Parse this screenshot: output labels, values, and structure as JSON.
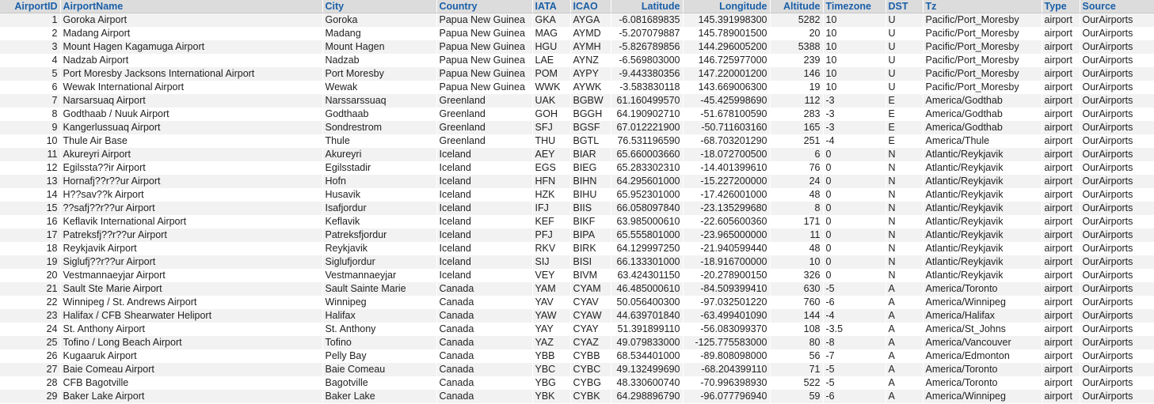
{
  "table": {
    "columns": [
      {
        "key": "id",
        "label": "AirportID",
        "align": "num"
      },
      {
        "key": "name",
        "label": "AirportName",
        "align": "left"
      },
      {
        "key": "city",
        "label": "City",
        "align": "left"
      },
      {
        "key": "country",
        "label": "Country",
        "align": "left"
      },
      {
        "key": "iata",
        "label": "IATA",
        "align": "left"
      },
      {
        "key": "icao",
        "label": "ICAO",
        "align": "left"
      },
      {
        "key": "lat",
        "label": "Latitude",
        "align": "num"
      },
      {
        "key": "lon",
        "label": "Longitude",
        "align": "num"
      },
      {
        "key": "alt",
        "label": "Altitude",
        "align": "num"
      },
      {
        "key": "tz_offset",
        "label": "Timezone",
        "align": "left"
      },
      {
        "key": "dst",
        "label": "DST",
        "align": "left"
      },
      {
        "key": "tz",
        "label": "Tz",
        "align": "left"
      },
      {
        "key": "type",
        "label": "Type",
        "align": "left"
      },
      {
        "key": "source",
        "label": "Source",
        "align": "left"
      }
    ],
    "rows": [
      [
        "1",
        "Goroka Airport",
        "Goroka",
        "Papua New Guinea",
        "GKA",
        "AYGA",
        "-6.081689835",
        "145.391998300",
        "5282",
        "10",
        "U",
        "Pacific/Port_Moresby",
        "airport",
        "OurAirports"
      ],
      [
        "2",
        "Madang Airport",
        "Madang",
        "Papua New Guinea",
        "MAG",
        "AYMD",
        "-5.207079887",
        "145.789001500",
        "20",
        "10",
        "U",
        "Pacific/Port_Moresby",
        "airport",
        "OurAirports"
      ],
      [
        "3",
        "Mount Hagen Kagamuga Airport",
        "Mount Hagen",
        "Papua New Guinea",
        "HGU",
        "AYMH",
        "-5.826789856",
        "144.296005200",
        "5388",
        "10",
        "U",
        "Pacific/Port_Moresby",
        "airport",
        "OurAirports"
      ],
      [
        "4",
        "Nadzab Airport",
        "Nadzab",
        "Papua New Guinea",
        "LAE",
        "AYNZ",
        "-6.569803000",
        "146.725977000",
        "239",
        "10",
        "U",
        "Pacific/Port_Moresby",
        "airport",
        "OurAirports"
      ],
      [
        "5",
        "Port Moresby Jacksons International Airport",
        "Port Moresby",
        "Papua New Guinea",
        "POM",
        "AYPY",
        "-9.443380356",
        "147.220001200",
        "146",
        "10",
        "U",
        "Pacific/Port_Moresby",
        "airport",
        "OurAirports"
      ],
      [
        "6",
        "Wewak International Airport",
        "Wewak",
        "Papua New Guinea",
        "WWK",
        "AYWK",
        "-3.583830118",
        "143.669006300",
        "19",
        "10",
        "U",
        "Pacific/Port_Moresby",
        "airport",
        "OurAirports"
      ],
      [
        "7",
        "Narsarsuaq Airport",
        "Narssarssuaq",
        "Greenland",
        "UAK",
        "BGBW",
        "61.160499570",
        "-45.425998690",
        "112",
        "-3",
        "E",
        "America/Godthab",
        "airport",
        "OurAirports"
      ],
      [
        "8",
        "Godthaab / Nuuk Airport",
        "Godthaab",
        "Greenland",
        "GOH",
        "BGGH",
        "64.190902710",
        "-51.678100590",
        "283",
        "-3",
        "E",
        "America/Godthab",
        "airport",
        "OurAirports"
      ],
      [
        "9",
        "Kangerlussuaq Airport",
        "Sondrestrom",
        "Greenland",
        "SFJ",
        "BGSF",
        "67.012221900",
        "-50.711603160",
        "165",
        "-3",
        "E",
        "America/Godthab",
        "airport",
        "OurAirports"
      ],
      [
        "10",
        "Thule Air Base",
        "Thule",
        "Greenland",
        "THU",
        "BGTL",
        "76.531196590",
        "-68.703201290",
        "251",
        "-4",
        "E",
        "America/Thule",
        "airport",
        "OurAirports"
      ],
      [
        "11",
        "Akureyri Airport",
        "Akureyri",
        "Iceland",
        "AEY",
        "BIAR",
        "65.660003660",
        "-18.072700500",
        "6",
        "0",
        "N",
        "Atlantic/Reykjavik",
        "airport",
        "OurAirports"
      ],
      [
        "12",
        "Egilssta??ir Airport",
        "Egilsstadir",
        "Iceland",
        "EGS",
        "BIEG",
        "65.283302310",
        "-14.401399610",
        "76",
        "0",
        "N",
        "Atlantic/Reykjavik",
        "airport",
        "OurAirports"
      ],
      [
        "13",
        "Hornafj??r??ur Airport",
        "Hofn",
        "Iceland",
        "HFN",
        "BIHN",
        "64.295601000",
        "-15.227200000",
        "24",
        "0",
        "N",
        "Atlantic/Reykjavik",
        "airport",
        "OurAirports"
      ],
      [
        "14",
        "H??sav??k Airport",
        "Husavik",
        "Iceland",
        "HZK",
        "BIHU",
        "65.952301000",
        "-17.426001000",
        "48",
        "0",
        "N",
        "Atlantic/Reykjavik",
        "airport",
        "OurAirports"
      ],
      [
        "15",
        "??safj??r??ur Airport",
        "Isafjordur",
        "Iceland",
        "IFJ",
        "BIIS",
        "66.058097840",
        "-23.135299680",
        "8",
        "0",
        "N",
        "Atlantic/Reykjavik",
        "airport",
        "OurAirports"
      ],
      [
        "16",
        "Keflavik International Airport",
        "Keflavik",
        "Iceland",
        "KEF",
        "BIKF",
        "63.985000610",
        "-22.605600360",
        "171",
        "0",
        "N",
        "Atlantic/Reykjavik",
        "airport",
        "OurAirports"
      ],
      [
        "17",
        "Patreksfj??r??ur Airport",
        "Patreksfjordur",
        "Iceland",
        "PFJ",
        "BIPA",
        "65.555801000",
        "-23.965000000",
        "11",
        "0",
        "N",
        "Atlantic/Reykjavik",
        "airport",
        "OurAirports"
      ],
      [
        "18",
        "Reykjavik Airport",
        "Reykjavik",
        "Iceland",
        "RKV",
        "BIRK",
        "64.129997250",
        "-21.940599440",
        "48",
        "0",
        "N",
        "Atlantic/Reykjavik",
        "airport",
        "OurAirports"
      ],
      [
        "19",
        "Siglufj??r??ur Airport",
        "Siglufjordur",
        "Iceland",
        "SIJ",
        "BISI",
        "66.133301000",
        "-18.916700000",
        "10",
        "0",
        "N",
        "Atlantic/Reykjavik",
        "airport",
        "OurAirports"
      ],
      [
        "20",
        "Vestmannaeyjar Airport",
        "Vestmannaeyjar",
        "Iceland",
        "VEY",
        "BIVM",
        "63.424301150",
        "-20.278900150",
        "326",
        "0",
        "N",
        "Atlantic/Reykjavik",
        "airport",
        "OurAirports"
      ],
      [
        "21",
        "Sault Ste Marie Airport",
        "Sault Sainte Marie",
        "Canada",
        "YAM",
        "CYAM",
        "46.485000610",
        "-84.509399410",
        "630",
        "-5",
        "A",
        "America/Toronto",
        "airport",
        "OurAirports"
      ],
      [
        "22",
        "Winnipeg / St. Andrews Airport",
        "Winnipeg",
        "Canada",
        "YAV",
        "CYAV",
        "50.056400300",
        "-97.032501220",
        "760",
        "-6",
        "A",
        "America/Winnipeg",
        "airport",
        "OurAirports"
      ],
      [
        "23",
        "Halifax / CFB Shearwater Heliport",
        "Halifax",
        "Canada",
        "YAW",
        "CYAW",
        "44.639701840",
        "-63.499401090",
        "144",
        "-4",
        "A",
        "America/Halifax",
        "airport",
        "OurAirports"
      ],
      [
        "24",
        "St. Anthony Airport",
        "St. Anthony",
        "Canada",
        "YAY",
        "CYAY",
        "51.391899110",
        "-56.083099370",
        "108",
        "-3.5",
        "A",
        "America/St_Johns",
        "airport",
        "OurAirports"
      ],
      [
        "25",
        "Tofino / Long Beach Airport",
        "Tofino",
        "Canada",
        "YAZ",
        "CYAZ",
        "49.079833000",
        "-125.775583000",
        "80",
        "-8",
        "A",
        "America/Vancouver",
        "airport",
        "OurAirports"
      ],
      [
        "26",
        "Kugaaruk Airport",
        "Pelly Bay",
        "Canada",
        "YBB",
        "CYBB",
        "68.534401000",
        "-89.808098000",
        "56",
        "-7",
        "A",
        "America/Edmonton",
        "airport",
        "OurAirports"
      ],
      [
        "27",
        "Baie Comeau Airport",
        "Baie Comeau",
        "Canada",
        "YBC",
        "CYBC",
        "49.132499690",
        "-68.204399110",
        "71",
        "-5",
        "A",
        "America/Toronto",
        "airport",
        "OurAirports"
      ],
      [
        "28",
        "CFB Bagotville",
        "Bagotville",
        "Canada",
        "YBG",
        "CYBG",
        "48.330600740",
        "-70.996398930",
        "522",
        "-5",
        "A",
        "America/Toronto",
        "airport",
        "OurAirports"
      ],
      [
        "29",
        "Baker Lake Airport",
        "Baker Lake",
        "Canada",
        "YBK",
        "CYBK",
        "64.298896790",
        "-96.077796940",
        "59",
        "-6",
        "A",
        "America/Winnipeg",
        "airport",
        "OurAirports"
      ]
    ]
  }
}
